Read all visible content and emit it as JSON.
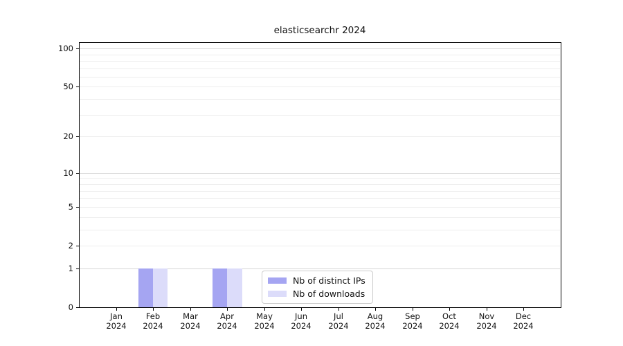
{
  "title": "elasticsearchr 2024",
  "chart_data": {
    "type": "bar",
    "title": "elasticsearchr 2024",
    "categories": [
      "Jan",
      "Feb",
      "Mar",
      "Apr",
      "May",
      "Jun",
      "Jul",
      "Aug",
      "Sep",
      "Oct",
      "Nov",
      "Dec"
    ],
    "category_year": "2024",
    "series": [
      {
        "name": "Nb of distinct IPs",
        "color": "#a5a5f2",
        "values": [
          0,
          1,
          0,
          1,
          0,
          0,
          0,
          0,
          0,
          0,
          0,
          0
        ]
      },
      {
        "name": "Nb of downloads",
        "color": "#dcdcfa",
        "values": [
          0,
          1,
          0,
          1,
          0,
          0,
          0,
          0,
          0,
          0,
          0,
          0
        ]
      }
    ],
    "yscale": "log1p",
    "ylim": [
      0,
      112
    ],
    "yticks": [
      0,
      1,
      2,
      5,
      10,
      20,
      50,
      100
    ],
    "grid": {
      "minor_values": [
        2,
        3,
        4,
        5,
        6,
        7,
        8,
        9,
        20,
        30,
        40,
        50,
        60,
        70,
        80,
        90
      ],
      "major_values": [
        1,
        10,
        100
      ],
      "minor_color": "#ededed",
      "major_color": "#d6d6d6"
    },
    "legend_position": "lower center"
  }
}
